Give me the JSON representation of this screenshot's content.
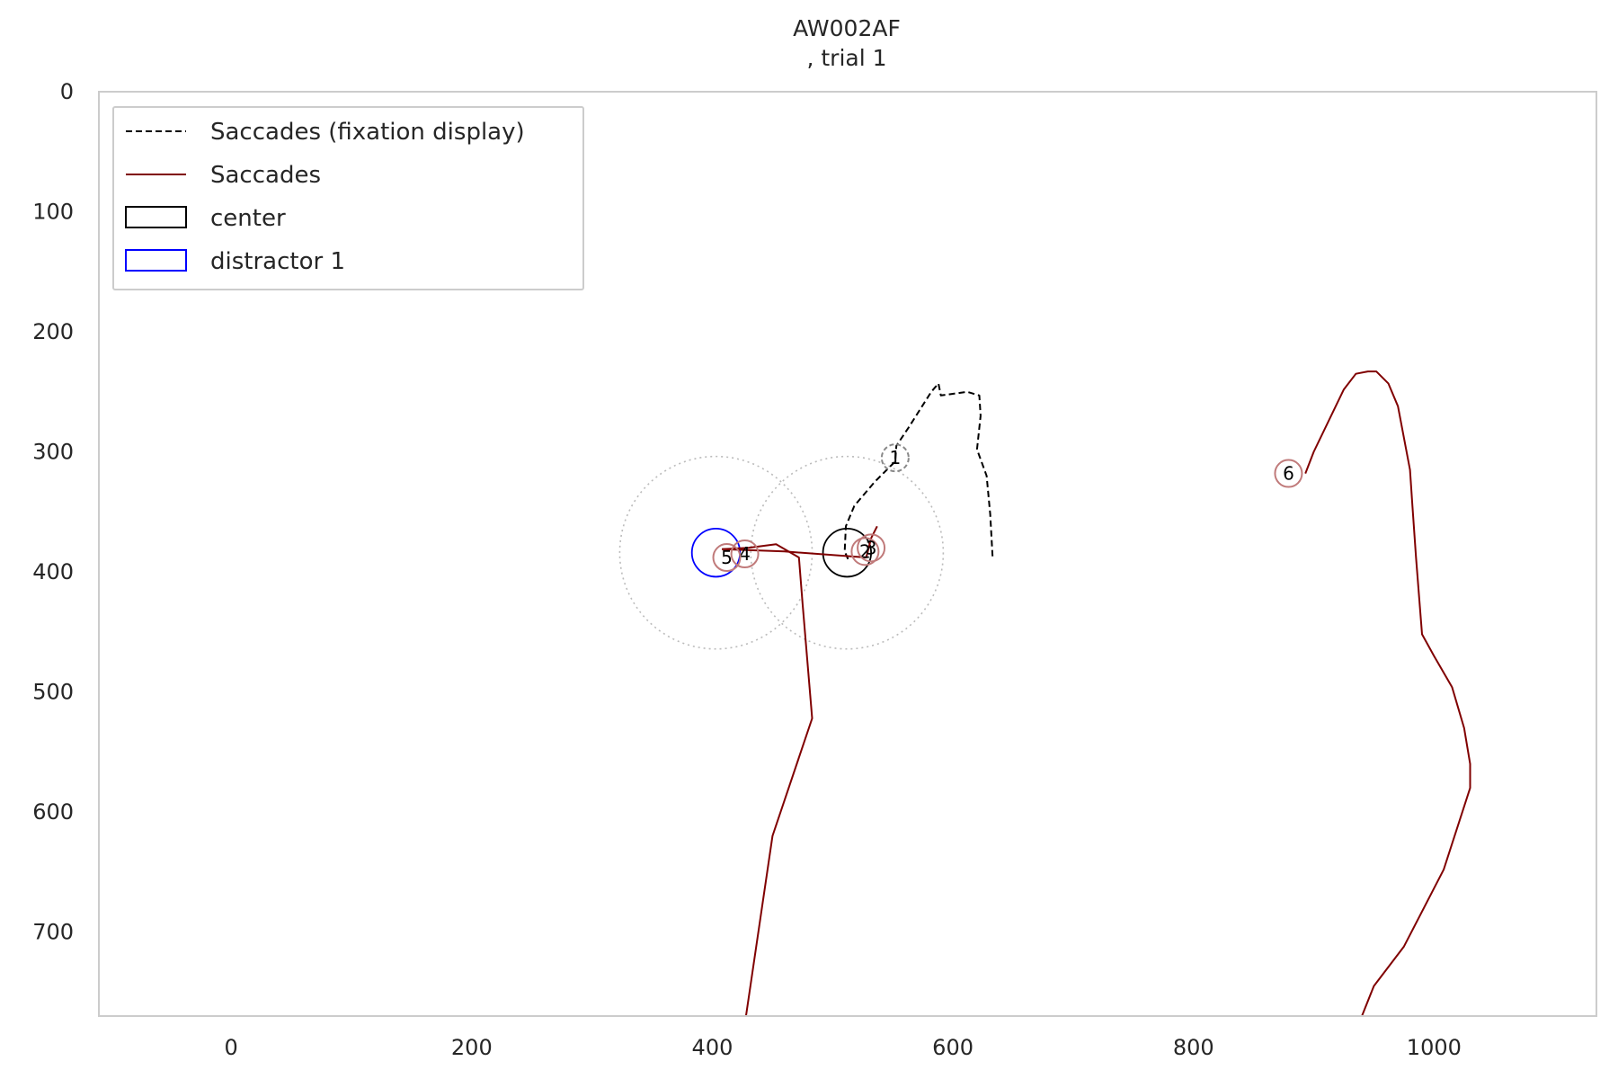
{
  "chart_data": {
    "type": "line",
    "title": "AW002AF",
    "subtitle": ", trial 1",
    "xlabel": "",
    "ylabel": "",
    "xlim": [
      -110,
      1135
    ],
    "ylim": [
      770,
      0
    ],
    "x_ticks": [
      0,
      200,
      400,
      600,
      800,
      1000
    ],
    "y_ticks": [
      0,
      100,
      200,
      300,
      400,
      500,
      600,
      700
    ],
    "grid": false,
    "legend_position": "top-left",
    "legend": [
      {
        "label": "Saccades (fixation display)",
        "style": "dashed-line",
        "color": "#000000"
      },
      {
        "label": "Saccades",
        "style": "line",
        "color": "#800000"
      },
      {
        "label": "center",
        "style": "box",
        "color": "#000000"
      },
      {
        "label": "distractor 1",
        "style": "box",
        "color": "#0000ff"
      }
    ],
    "series": [
      {
        "name": "Saccades (fixation display)",
        "color": "#000000",
        "style": "dashed",
        "segments": [
          [
            [
              633,
              387
            ],
            [
              631,
              352
            ],
            [
              628,
              320
            ],
            [
              620,
              298
            ],
            [
              623,
              270
            ],
            [
              622,
              253
            ],
            [
              612,
              250
            ],
            [
              590,
              253
            ],
            [
              588,
              243
            ],
            [
              582,
              250
            ],
            [
              563,
              280
            ],
            [
              553,
              295
            ],
            [
              552,
              308
            ],
            [
              535,
              325
            ],
            [
              518,
              345
            ],
            [
              511,
              362
            ],
            [
              510,
              383
            ],
            [
              514,
              392
            ]
          ]
        ]
      },
      {
        "name": "Saccades",
        "color": "#800000",
        "style": "solid",
        "segments": [
          [
            [
              428,
              770
            ],
            [
              450,
              620
            ],
            [
              483,
              522
            ],
            [
              475,
              426
            ],
            [
              472,
              388
            ],
            [
              453,
              377
            ],
            [
              430,
              380
            ],
            [
              408,
              381
            ]
          ],
          [
            [
              408,
              381
            ],
            [
              460,
              383
            ],
            [
              528,
              388
            ],
            [
              532,
              372
            ],
            [
              537,
              362
            ]
          ],
          [
            [
              940,
              770
            ],
            [
              950,
              745
            ],
            [
              975,
              712
            ],
            [
              1008,
              648
            ],
            [
              1030,
              580
            ],
            [
              1030,
              560
            ],
            [
              1025,
              530
            ],
            [
              1015,
              496
            ],
            [
              1000,
              470
            ],
            [
              990,
              452
            ],
            [
              985,
              388
            ],
            [
              982,
              345
            ],
            [
              980,
              315
            ],
            [
              970,
              262
            ],
            [
              962,
              243
            ],
            [
              952,
              233
            ],
            [
              945,
              233
            ],
            [
              935,
              235
            ],
            [
              925,
              248
            ],
            [
              900,
              300
            ],
            [
              893,
              318
            ]
          ]
        ]
      }
    ],
    "fixations": [
      {
        "label": "1",
        "x": 552,
        "y": 305,
        "style": "dashed-gray"
      },
      {
        "label": "2",
        "x": 527,
        "y": 383,
        "style": "red"
      },
      {
        "label": "3",
        "x": 532,
        "y": 380,
        "style": "red"
      },
      {
        "label": "4",
        "x": 427,
        "y": 385,
        "style": "red"
      },
      {
        "label": "5",
        "x": 412,
        "y": 388,
        "style": "red"
      },
      {
        "label": "6",
        "x": 879,
        "y": 318,
        "style": "red"
      }
    ],
    "areas_of_interest": [
      {
        "name": "center",
        "x": 512,
        "y": 384,
        "r": 20,
        "color": "#000000"
      },
      {
        "name": "distractor 1",
        "x": 403,
        "y": 384,
        "r": 20,
        "color": "#0000ff"
      }
    ],
    "boundary_circles": [
      {
        "x": 512,
        "y": 384,
        "r": 80
      },
      {
        "x": 403,
        "y": 384,
        "r": 80
      }
    ]
  }
}
